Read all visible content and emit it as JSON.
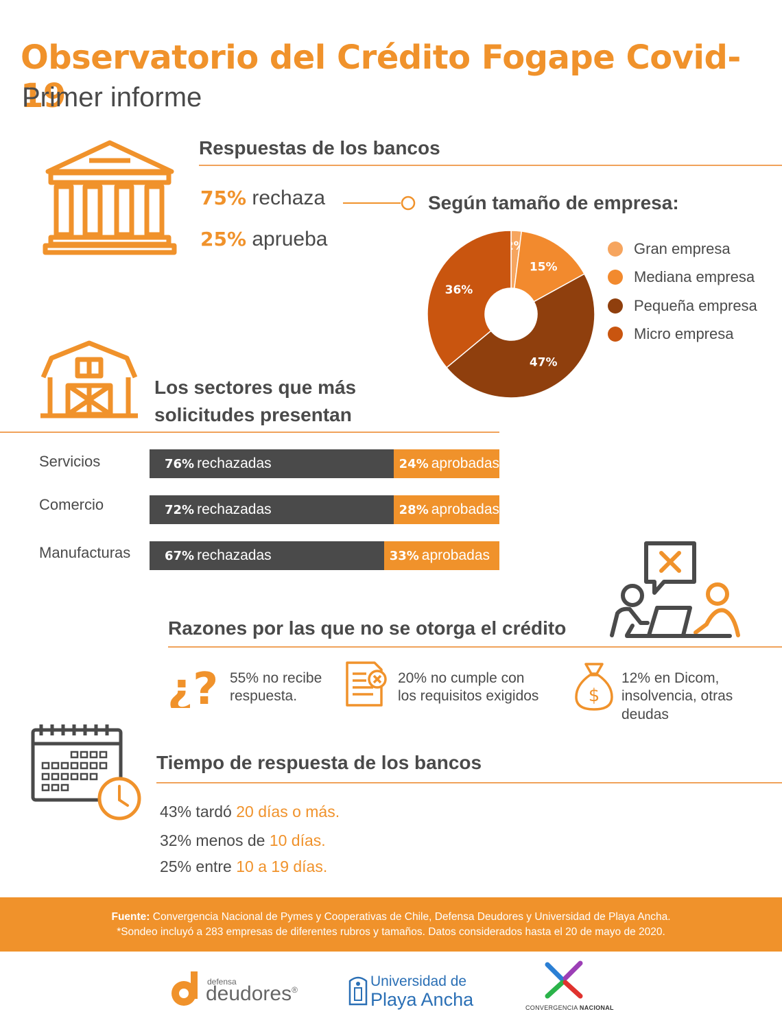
{
  "header": {
    "title": "Observatorio del Crédito Fogape Covid-19",
    "subtitle": "Primer informe"
  },
  "bancos": {
    "heading": "Respuestas de los bancos",
    "rechaza_pct": "75%",
    "rechaza_label": " rechaza",
    "aprueba_pct": "25%",
    "aprueba_label": " aprueba"
  },
  "tamano": {
    "heading": "Según tamaño de empresa:",
    "legend": [
      "Gran empresa",
      "Mediana empresa",
      "Pequeña empresa",
      "Micro empresa"
    ]
  },
  "chart_data": {
    "type": "pie",
    "donut": true,
    "categories": [
      "Gran empresa",
      "Mediana empresa",
      "Pequeña empresa",
      "Micro empresa"
    ],
    "values": [
      2,
      15,
      47,
      36
    ],
    "labels": [
      "2%",
      "15%",
      "47%",
      "36%"
    ],
    "colors": [
      "#f6a55f",
      "#f28a2e",
      "#8f3f0d",
      "#c9550f"
    ],
    "legend_position": "right"
  },
  "sectores": {
    "heading_line1": "Los sectores que más",
    "heading_line2": "solicitudes presentan",
    "rows": [
      {
        "name": "Servicios",
        "rechazo": 76,
        "rechazo_pct": "76%",
        "rechazo_label": "rechazadas",
        "aprob_pct": "24%",
        "aprob_label": "aprobadas"
      },
      {
        "name": "Comercio",
        "rechazo": 72,
        "rechazo_pct": "72%",
        "rechazo_label": "rechazadas",
        "aprob_pct": "28%",
        "aprob_label": "aprobadas"
      },
      {
        "name": "Manufacturas",
        "rechazo": 67,
        "rechazo_pct": "67%",
        "rechazo_label": "rechazadas",
        "aprob_pct": "33%",
        "aprob_label": "aprobadas"
      }
    ]
  },
  "razones": {
    "heading": "Razones por las que no se otorga el crédito",
    "r1_line1": "55% no recibe",
    "r1_line2": "respuesta.",
    "r2_line1": "20% no cumple con",
    "r2_line2": "los requisitos exigidos",
    "r3_line1": "12% en Dicom,",
    "r3_line2": "insolvencia, otras",
    "r3_line3": "deudas"
  },
  "tiempo": {
    "heading": "Tiempo de respuesta de los bancos",
    "l1_a": "43% tardó ",
    "l1_b": "20 días o más.",
    "l2_a": "32% menos de ",
    "l2_b": "10 días.",
    "l3_a": "25% entre ",
    "l3_b": "10 a 19 días."
  },
  "footer": {
    "fuente_label": "Fuente:",
    "fuente_text": " Convergencia Nacional de Pymes y Cooperativas de Chile, Defensa Deudores y  Universidad de Playa Ancha.",
    "nota": "*Sondeo incluyó a 283 empresas de diferentes rubros y tamaños. Datos considerados hasta el 20 de mayo de 2020."
  },
  "logos": {
    "dd_small": "defensa",
    "dd_big": "deudores",
    "dd_reg": "®",
    "upla_1": "Universidad de",
    "upla_2": "Playa Ancha",
    "conv_a": "CONVERGENCIA ",
    "conv_b": "NACIONAL"
  }
}
